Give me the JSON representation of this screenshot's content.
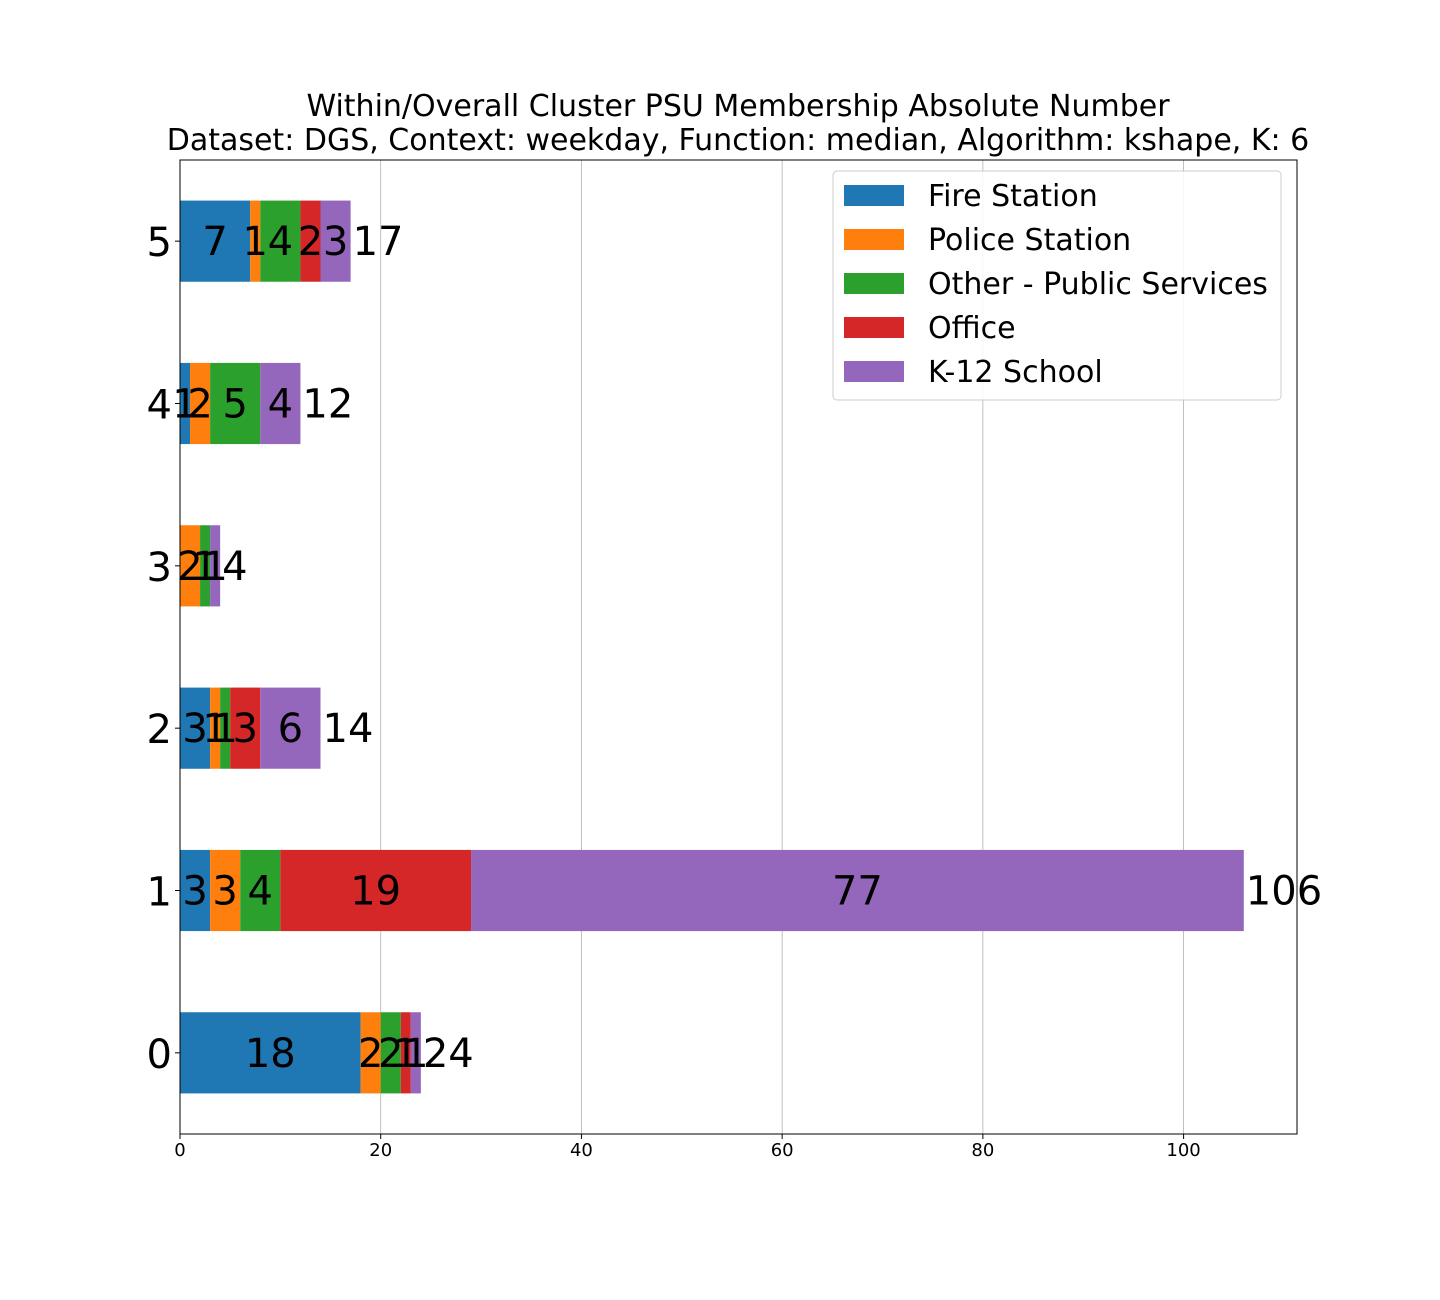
{
  "chart_data": {
    "type": "bar",
    "orientation": "horizontal",
    "stacked": true,
    "title": "Within/Overall Cluster PSU Membership Absolute Number",
    "subtitle": "Dataset: DGS, Context: weekday, Function: median, Algorithm: kshape, K: 6",
    "xlabel": "",
    "ylabel": "",
    "categories": [
      "0",
      "1",
      "2",
      "3",
      "4",
      "5"
    ],
    "series": [
      {
        "name": "Fire Station",
        "color": "#1f77b4",
        "values": [
          18,
          3,
          3,
          0,
          1,
          7
        ]
      },
      {
        "name": "Police Station",
        "color": "#ff7f0e",
        "values": [
          2,
          3,
          1,
          2,
          2,
          1
        ]
      },
      {
        "name": "Other - Public Services",
        "color": "#2ca02c",
        "values": [
          2,
          4,
          1,
          1,
          5,
          4
        ]
      },
      {
        "name": "Office",
        "color": "#d62728",
        "values": [
          1,
          19,
          3,
          0,
          0,
          2
        ]
      },
      {
        "name": "K-12 School",
        "color": "#9467bd",
        "values": [
          1,
          77,
          6,
          1,
          4,
          3
        ]
      }
    ],
    "totals": [
      24,
      106,
      14,
      4,
      12,
      17
    ],
    "xlim": [
      0,
      111.3
    ],
    "xticks": [
      0,
      20,
      40,
      60,
      80,
      100
    ],
    "grid": "x",
    "legend": "top-right"
  }
}
